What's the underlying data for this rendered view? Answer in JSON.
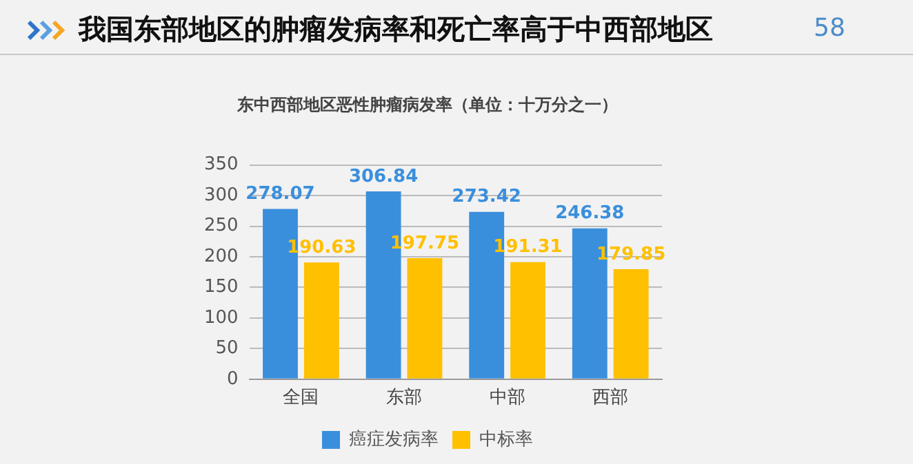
{
  "chart_data": {
    "type": "bar",
    "title": "我国东部地区的肿瘤发病率和死亡率高于中西部地区",
    "subtitle": "东中西部地区恶性肿瘤病发率（单位：十万分之一）",
    "annotations": [
      "58"
    ],
    "categories": [
      "全国",
      "东部",
      "中部",
      "西部"
    ],
    "series": [
      {
        "name": "癌症发病率",
        "color": "#3a8fdd",
        "values": [
          278.07,
          306.84,
          273.42,
          246.38
        ]
      },
      {
        "name": "中标率",
        "color": "#ffc000",
        "values": [
          190.63,
          197.75,
          191.31,
          179.85
        ]
      }
    ],
    "ylim": [
      0,
      350
    ],
    "yticks": [
      0,
      50,
      100,
      150,
      200,
      250,
      300,
      350
    ],
    "grid": "y",
    "legend": "bottom",
    "data_labels": true
  }
}
